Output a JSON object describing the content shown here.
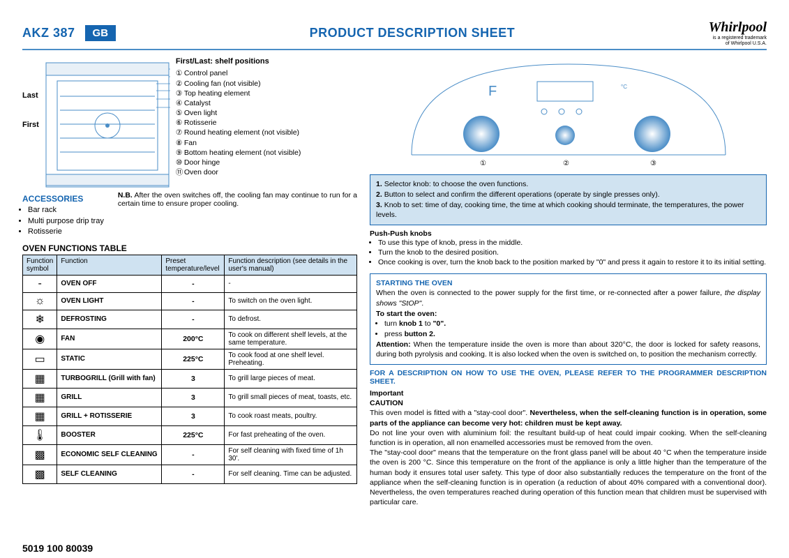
{
  "header": {
    "model": "AKZ 387",
    "badge": "GB",
    "title": "PRODUCT DESCRIPTION SHEET",
    "logo": "Whirlpool",
    "logo_sub1": "is a registered trademark",
    "logo_sub2": "of Whirlpool U.S.A."
  },
  "shelf": {
    "last": "Last",
    "first": "First"
  },
  "parts": {
    "title": "First/Last: shelf positions",
    "items": [
      "Control panel",
      "Cooling fan (not visible)",
      "Top heating element",
      "Catalyst",
      "Oven light",
      "Rotisserie",
      "Round heating element (not visible)",
      "Fan",
      "Bottom heating element (not visible)",
      "Door hinge",
      "Oven door"
    ]
  },
  "accessories": {
    "title": "ACCESSORIES",
    "items": [
      "Bar rack",
      "Multi purpose drip tray",
      "Rotisserie"
    ]
  },
  "nb": {
    "label": "N.B.",
    "text": "After the oven switches off, the cooling fan may continue to run for a certain time to ensure proper cooling."
  },
  "functions_table": {
    "title": "OVEN FUNCTIONS TABLE",
    "headers": {
      "symbol": "Function symbol",
      "function": "Function",
      "preset": "Preset temperature/level",
      "desc": "Function description (see details in the user's manual)"
    },
    "rows": [
      {
        "sym": "-",
        "fn": "OVEN OFF",
        "temp": "-",
        "desc": "-"
      },
      {
        "sym": "☼",
        "fn": "OVEN LIGHT",
        "temp": "-",
        "desc": "To switch on the oven light."
      },
      {
        "sym": "❄",
        "fn": "DEFROSTING",
        "temp": "-",
        "desc": "To defrost."
      },
      {
        "sym": "◉",
        "fn": "FAN",
        "temp": "200°C",
        "desc": "To cook on different shelf levels, at the same temperature."
      },
      {
        "sym": "▭",
        "fn": "STATIC",
        "temp": "225°C",
        "desc": "To cook food at one shelf level. Preheating."
      },
      {
        "sym": "▦",
        "fn": "TURBOGRILL (Grill with fan)",
        "temp": "3",
        "desc": "To grill large pieces of meat."
      },
      {
        "sym": "▦",
        "fn": "GRILL",
        "temp": "3",
        "desc": "To grill small pieces of meat, toasts, etc."
      },
      {
        "sym": "▦",
        "fn": "GRILL + ROTISSERIE",
        "temp": "3",
        "desc": "To cook roast meats, poultry."
      },
      {
        "sym": "🌡",
        "fn": "BOOSTER",
        "temp": "225°C",
        "desc": "For fast preheating of the oven."
      },
      {
        "sym": "▩",
        "fn": "ECONOMIC SELF CLEANING",
        "temp": "-",
        "desc": "For self cleaning with fixed time of 1h 30'."
      },
      {
        "sym": "▩",
        "fn": "SELF CLEANING",
        "temp": "-",
        "desc": "For self cleaning. Time can be adjusted."
      }
    ]
  },
  "knobs": {
    "k1": "Selector knob: to choose the oven functions.",
    "k2": "Button to select and confirm the different operations (operate by single presses only).",
    "k3": "Knob to set: time of day, cooking time, the time at which cooking should terminate, the temperatures, the power levels."
  },
  "push": {
    "title": "Push-Push knobs",
    "items": [
      "To use this type of knob, press in the middle.",
      "Turn the knob to the desired position.",
      "Once cooking is over, turn the knob back to the position marked by \"0\" and press it again to restore it to its initial setting."
    ]
  },
  "start": {
    "title": "STARTING THE OVEN",
    "intro": "When the oven is connected to the power supply for the first time, or re-connected after a power failure, the display shows \"StOP\".",
    "to_start": "To start the oven:",
    "b1": "turn knob 1 to \"0\".",
    "b2": "press button 2.",
    "attention_label": "Attention:",
    "attention": " When the temperature inside the oven is more than about 320°C, the door is locked for safety reasons, during both pyrolysis and cooking. It is also locked when the oven is switched on, to position the mechanism correctly."
  },
  "refer": "FOR A DESCRIPTION ON HOW TO USE THE OVEN, PLEASE REFER TO THE PROGRAMMER DESCRIPTION SHEET.",
  "important": {
    "imp": "Important",
    "caution": "CAUTION",
    "p1a": "This oven model is fitted with a \"stay-cool door\". ",
    "p1b": "Nevertheless, when the self-cleaning function is in operation, some parts of the appliance can become very hot: children must be kept away.",
    "p2": "Do not line your oven with aluminium foil: the resultant build-up of heat could impair cooking. When the self-cleaning function is in operation, all non enamelled accessories must be removed from the oven.",
    "p3": "The \"stay-cool door\" means that the temperature on the front glass panel will be about 40 °C when the temperature inside the oven is 200 °C. Since this temperature on the front of the appliance is only a little higher than the temperature of the human body it ensures total user safety. This type of door also substantially reduces the temperature on the front of the appliance when the self-cleaning function is in operation (a reduction of about 40% compared with a conventional door). Nevertheless, the oven temperatures reached during operation of this function mean that children must be supervised with particular care."
  },
  "footer": "5019 100 80039",
  "colors": {
    "accent": "#1565b0",
    "soft_blue": "#cfe2f1",
    "panel_blue": "#b9d7ec",
    "knob_grad_outer": "#4a8dc7"
  },
  "panel_label": "F"
}
